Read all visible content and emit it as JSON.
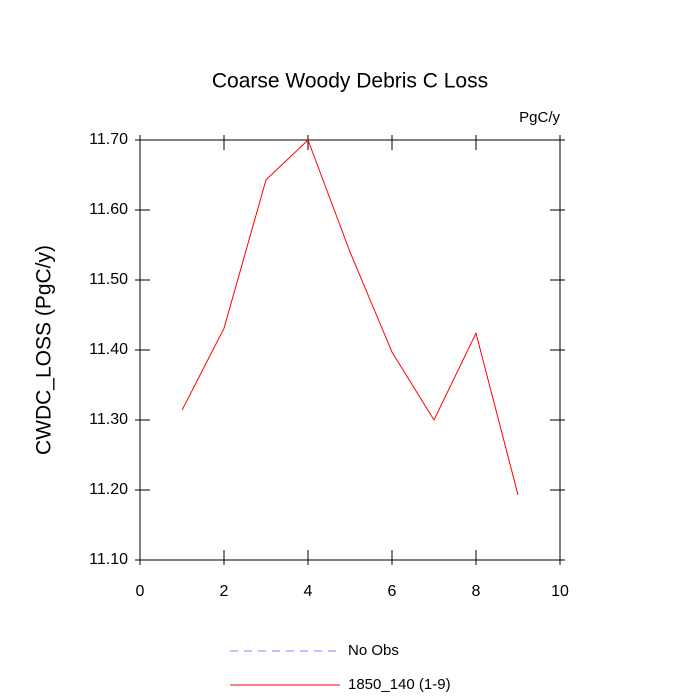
{
  "chart_data": {
    "type": "line",
    "title": "Coarse Woody Debris C Loss",
    "units_label": "PgC/y",
    "y_label": "CWDC_LOSS  (PgC/y)",
    "x": [
      1,
      2,
      3,
      4,
      5,
      6,
      7,
      8,
      9
    ],
    "series": [
      {
        "name": "No Obs",
        "color": "#8080ff",
        "dashed": true,
        "values": [
          null,
          null,
          null,
          null,
          null,
          null,
          null,
          null,
          null
        ]
      },
      {
        "name": "1850_140 (1-9)",
        "color": "#ff0000",
        "dashed": false,
        "values": [
          11.314,
          11.431,
          11.643,
          11.7,
          11.54,
          11.397,
          11.3,
          11.424,
          11.193
        ]
      }
    ],
    "xlim": [
      0,
      10
    ],
    "xticks": [
      0,
      2,
      4,
      6,
      8,
      10
    ],
    "ylim": [
      11.1,
      11.7
    ],
    "yticks": [
      {
        "value": 11.1,
        "label": "11.10"
      },
      {
        "value": 11.2,
        "label": "11.20"
      },
      {
        "value": 11.3,
        "label": "11.30"
      },
      {
        "value": 11.4,
        "label": "11.40"
      },
      {
        "value": 11.5,
        "label": "11.50"
      },
      {
        "value": 11.6,
        "label": "11.60"
      },
      {
        "value": 11.7,
        "label": "11.70"
      }
    ],
    "grid": false
  }
}
